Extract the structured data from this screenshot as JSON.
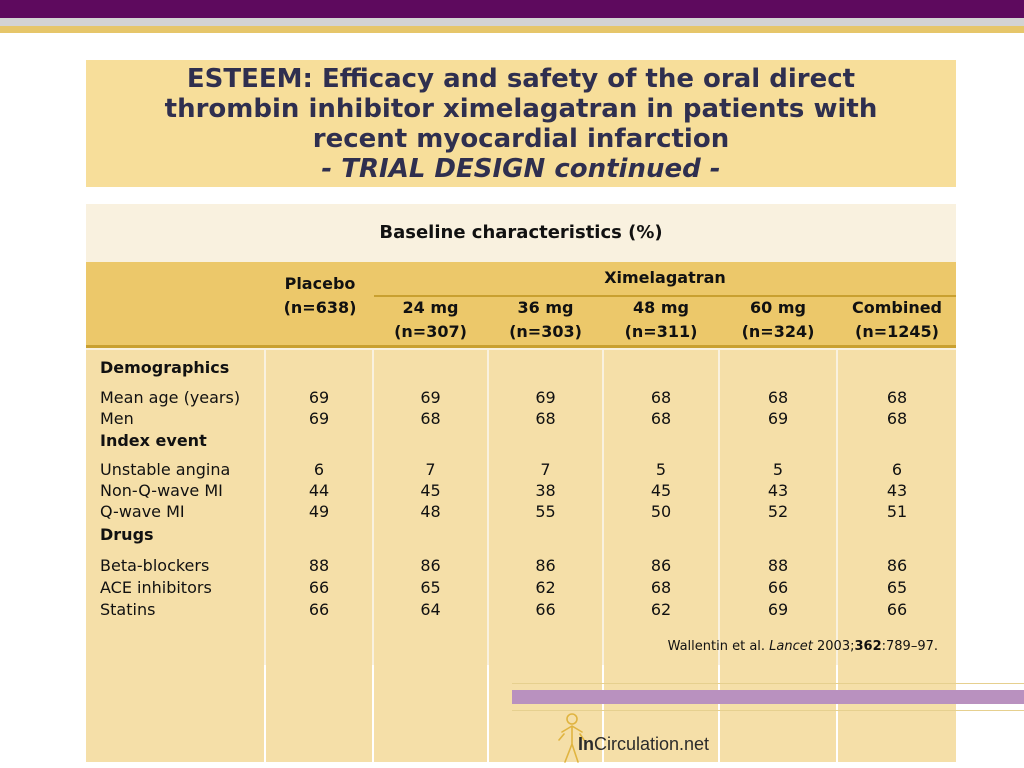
{
  "title": {
    "line1": "ESTEEM: Efficacy and safety of the oral direct",
    "line2": "thrombin inhibitor ximelagatran in patients with",
    "line3": "recent myocardial infarction",
    "subtitle": "- TRIAL DESIGN continued -"
  },
  "table": {
    "caption": "Baseline characteristics (%)",
    "placebo_label": "Placebo",
    "placebo_n": "(n=638)",
    "ximelagatran_label": "Ximelagatran",
    "dose_columns": [
      {
        "dose": "24 mg",
        "n": "(n=307)"
      },
      {
        "dose": "36 mg",
        "n": "(n=303)"
      },
      {
        "dose": "48 mg",
        "n": "(n=311)"
      },
      {
        "dose": "60 mg",
        "n": "(n=324)"
      },
      {
        "dose": "Combined",
        "n": "(n=1245)"
      }
    ],
    "sections": [
      {
        "heading": "Demographics",
        "rows": [
          {
            "label": "Mean age (years)",
            "values": [
              "69",
              "69",
              "69",
              "68",
              "68",
              "68"
            ]
          },
          {
            "label": "Men",
            "values": [
              "69",
              "68",
              "68",
              "68",
              "69",
              "68"
            ]
          }
        ]
      },
      {
        "heading": "Index event",
        "rows": [
          {
            "label": "Unstable angina",
            "values": [
              "6",
              "7",
              "7",
              "5",
              "5",
              "6"
            ]
          },
          {
            "label": "Non-Q-wave MI",
            "values": [
              "44",
              "45",
              "38",
              "45",
              "43",
              "43"
            ]
          },
          {
            "label": "Q-wave MI",
            "values": [
              "49",
              "48",
              "55",
              "50",
              "52",
              "51"
            ]
          }
        ]
      },
      {
        "heading": "Drugs",
        "rows": [
          {
            "label": "Beta-blockers",
            "values": [
              "88",
              "86",
              "86",
              "86",
              "88",
              "86"
            ]
          },
          {
            "label": "ACE inhibitors",
            "values": [
              "66",
              "65",
              "62",
              "68",
              "66",
              "65"
            ]
          },
          {
            "label": "Statins",
            "values": [
              "66",
              "64",
              "66",
              "62",
              "69",
              "66"
            ]
          }
        ]
      }
    ]
  },
  "citation": {
    "authors": "Wallentin et al. ",
    "journal": "Lancet",
    "year": " 2003;",
    "volume": "362",
    "pages": ":789–97."
  },
  "logo": {
    "bold": "In",
    "rest": "Circulation.net",
    "icon": "person-figure-icon"
  },
  "colors": {
    "top_band": "#5e0a5e",
    "title_box": "#f7de9a",
    "header_row": "#ecc86a",
    "column_fill": "#f5dfa8",
    "panel": "#f9f1df",
    "footer_band": "#b991bf"
  }
}
